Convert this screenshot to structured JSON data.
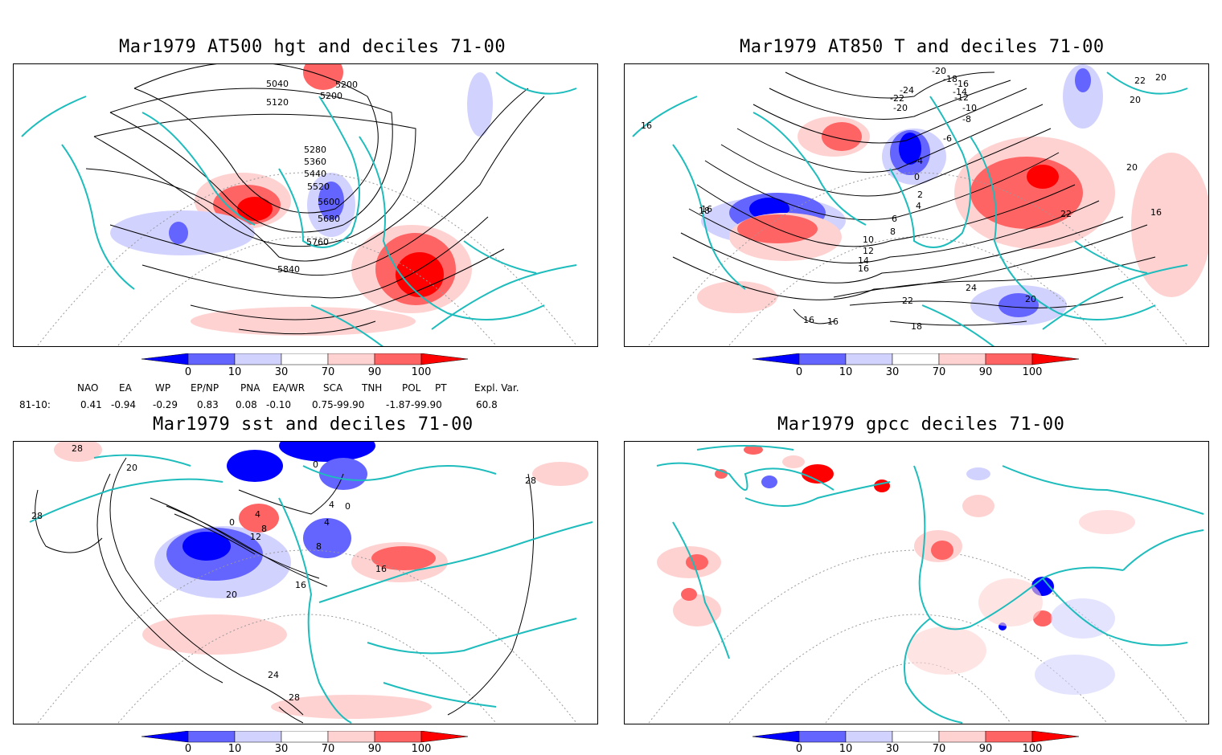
{
  "panels": [
    {
      "title": "Mar1979 AT500 hgt and deciles 71-00",
      "contour_labels": [
        "5040",
        "5120",
        "5200",
        "5200",
        "5280",
        "5360",
        "5440",
        "5520",
        "5600",
        "5680",
        "5760",
        "5840"
      ]
    },
    {
      "title": "Mar1979 AT850 T and deciles 71-00",
      "contour_labels": [
        "16",
        "16",
        "-20",
        "-18",
        "-24",
        "-22",
        "-20",
        "-16",
        "-14",
        "-12",
        "-10",
        "-8",
        "-6",
        "-4",
        "0",
        "2",
        "4",
        "6",
        "8",
        "10",
        "12",
        "14",
        "16",
        "18",
        "20",
        "20",
        "22",
        "24",
        "22",
        "20",
        "18",
        "16",
        "16",
        "16",
        "22",
        "20"
      ]
    },
    {
      "title": "Mar1979 sst and deciles 71-00",
      "contour_labels": [
        "28",
        "20",
        "28",
        "0",
        "0",
        "4",
        "4",
        "8",
        "12",
        "8",
        "4",
        "0",
        "16",
        "20",
        "24",
        "28",
        "28",
        "16"
      ]
    },
    {
      "title": "Mar1979 gpcc deciles 71-00",
      "contour_labels": []
    }
  ],
  "colorbar": {
    "ticks": [
      "0",
      "10",
      "30",
      "70",
      "90",
      "100"
    ],
    "colors": [
      "#0000ff",
      "#6464ff",
      "#d2d2ff",
      "#ffffff",
      "#ffd2d2",
      "#ff6464",
      "#ff0000"
    ]
  },
  "teleconnections": {
    "headers": [
      "NAO",
      "EA",
      "WP",
      "EP/NP",
      "PNA",
      "EA/WR",
      "SCA",
      "TNH",
      "POL",
      "PT",
      "Expl. Var."
    ],
    "row_label": "81-10:",
    "values": [
      "0.41",
      "-0.94",
      "-0.29",
      "0.83",
      "0.08",
      "-0.10",
      "0.75-99.90",
      "-1.87-99.90",
      "60.8"
    ]
  },
  "colors": {
    "coastline": "#1ebcbc",
    "contour": "#000000",
    "grid": "#999999"
  }
}
